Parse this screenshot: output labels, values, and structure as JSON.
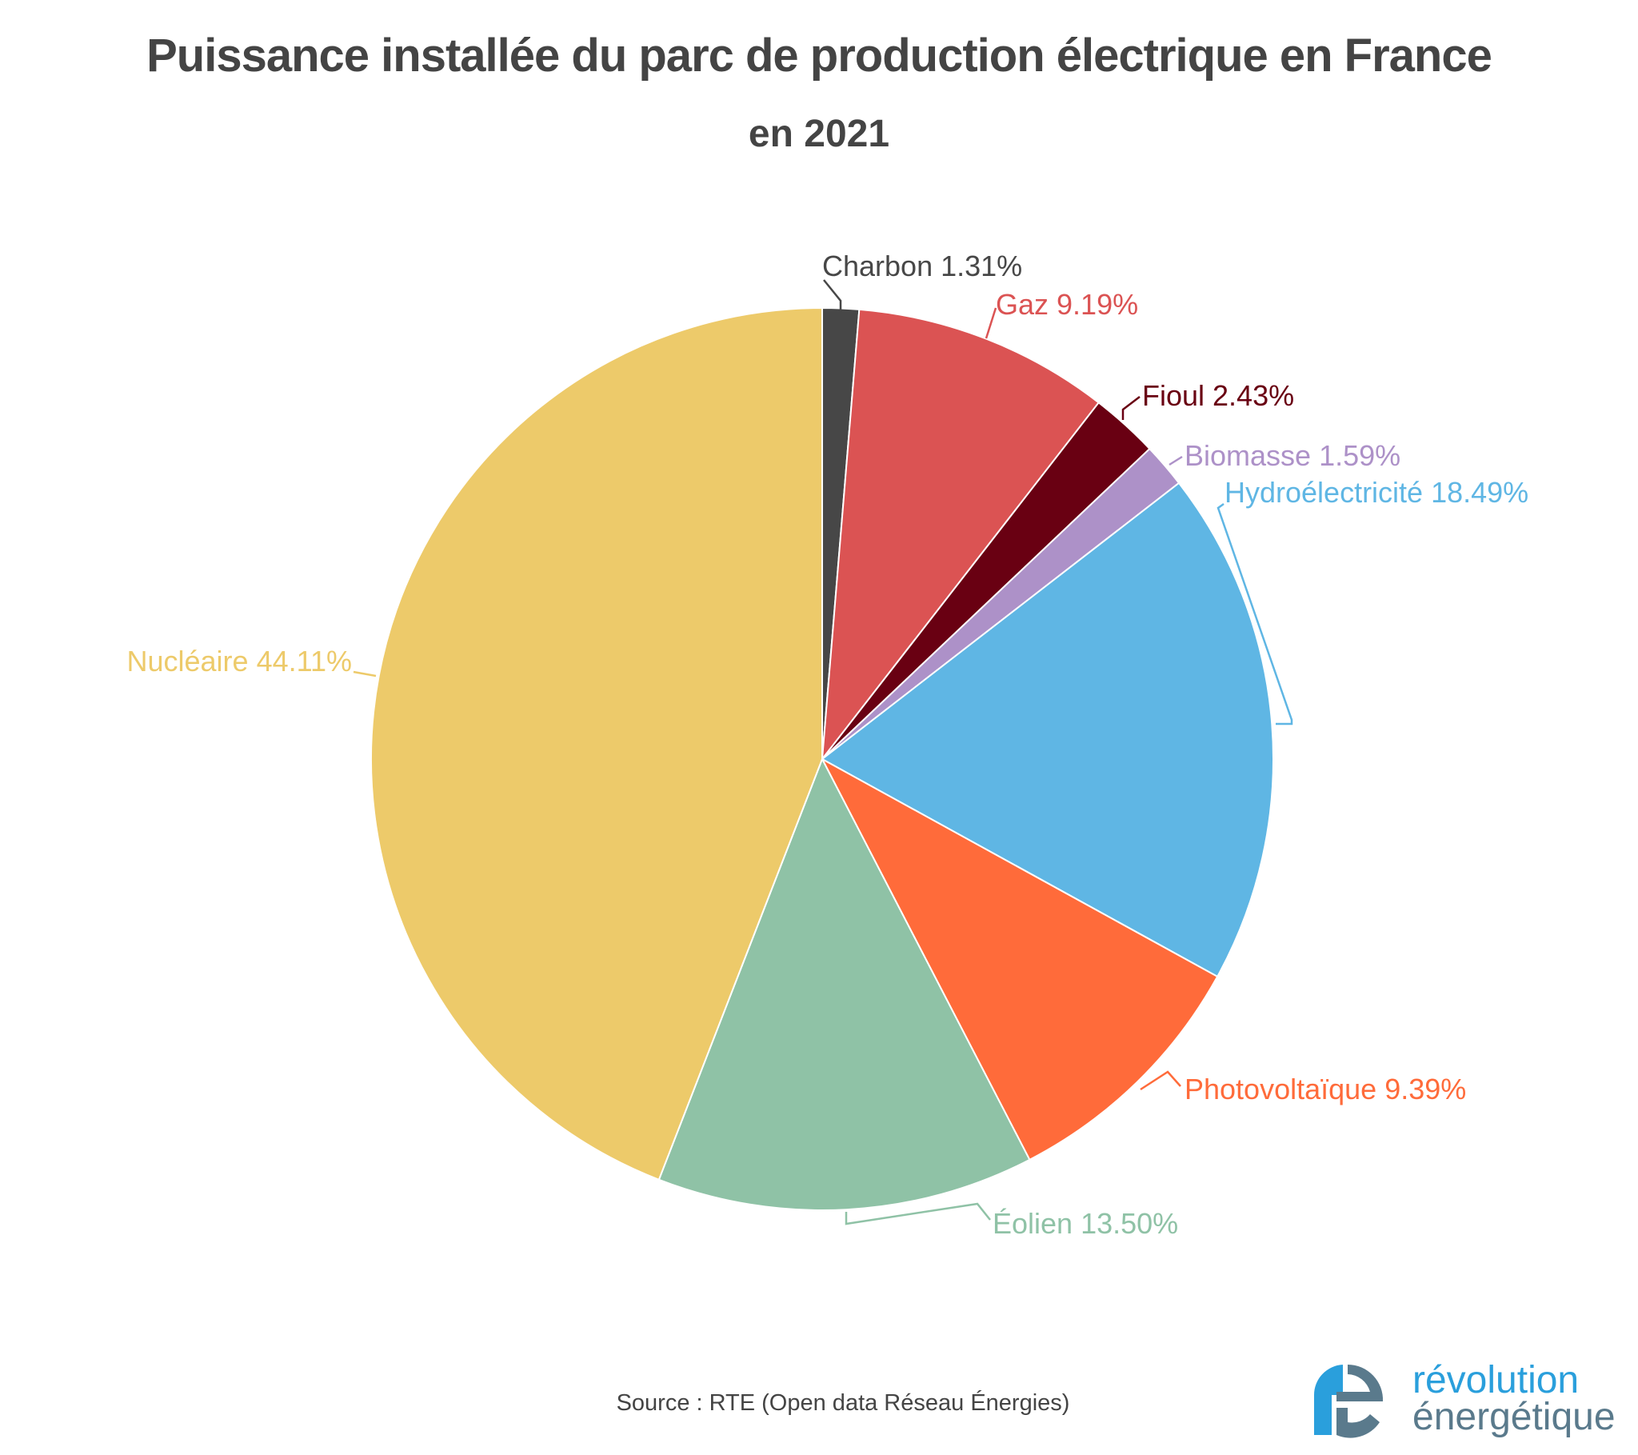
{
  "chart_data": {
    "type": "pie",
    "title": "Puissance installée du parc de production électrique en France",
    "subtitle": "en 2021",
    "unit": "%",
    "start_angle": "top",
    "direction": "clockwise",
    "slices": [
      {
        "label": "Charbon",
        "value": 1.31,
        "text": "Charbon 1.31%",
        "color": "#474747"
      },
      {
        "label": "Gaz",
        "value": 9.19,
        "text": "Gaz 9.19%",
        "color": "#db5353"
      },
      {
        "label": "Fioul",
        "value": 2.43,
        "text": "Fioul 2.43%",
        "color": "#690012"
      },
      {
        "label": "Biomasse",
        "value": 1.59,
        "text": "Biomasse 1.59%",
        "color": "#ad91c8"
      },
      {
        "label": "Hydroélectricité",
        "value": 18.49,
        "text": "Hydroélectricité 18.49%",
        "color": "#5fb6e4"
      },
      {
        "label": "Photovoltaïque",
        "value": 9.39,
        "text": "Photovoltaïque 9.39%",
        "color": "#ff6b3a"
      },
      {
        "label": "Éolien",
        "value": 13.5,
        "text": "Éolien 13.50%",
        "color": "#8fc2a6"
      },
      {
        "label": "Nucléaire",
        "value": 44.11,
        "text": "Nucléaire 44.11%",
        "color": "#edca6a"
      }
    ]
  },
  "source": "Source : RTE (Open data Réseau Énergies)",
  "logo": {
    "line1": "révolution",
    "line2": "énergétique"
  }
}
